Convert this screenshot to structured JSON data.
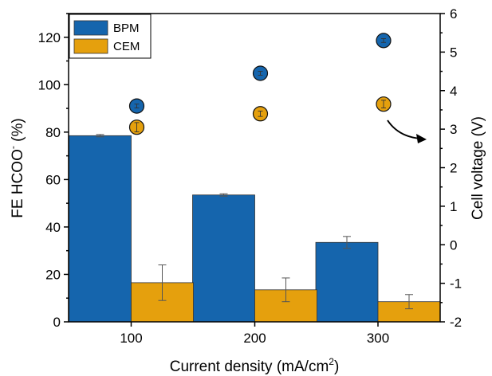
{
  "chart_data": {
    "type": "bar",
    "categories": [
      "100",
      "200",
      "300"
    ],
    "xlabel": "Current density (mA/cm",
    "xlabel_sup": "2",
    "xlabel_close": ")",
    "ylabel_left": "FE HCOO",
    "ylabel_left_sup": "-",
    "ylabel_left_unit": " (%)",
    "ylabel_right": "Cell voltage (V)",
    "ylim_left": [
      0,
      130
    ],
    "ylim_right": [
      -2,
      6
    ],
    "yticks_left": [
      0,
      20,
      40,
      60,
      80,
      100,
      120
    ],
    "yticks_right": [
      -2,
      -1,
      0,
      1,
      2,
      3,
      4,
      5,
      6
    ],
    "legend_position": "top-left",
    "series": [
      {
        "name": "BPM",
        "color": "#1565ad",
        "values": [
          78.5,
          53.5,
          33.5
        ],
        "errors": [
          0.5,
          0.5,
          2.5
        ],
        "cell_voltage": [
          3.6,
          4.45,
          5.3
        ],
        "cell_voltage_errors": [
          0.05,
          0.05,
          0.05
        ]
      },
      {
        "name": "CEM",
        "color": "#e5a00d",
        "values": [
          16.5,
          13.5,
          8.5
        ],
        "errors": [
          7.5,
          5.0,
          3.0
        ],
        "cell_voltage": [
          3.05,
          3.4,
          3.65
        ],
        "cell_voltage_errors": [
          0.12,
          0.07,
          0.1
        ]
      }
    ],
    "annotation": "arrow-to-right-axis"
  }
}
